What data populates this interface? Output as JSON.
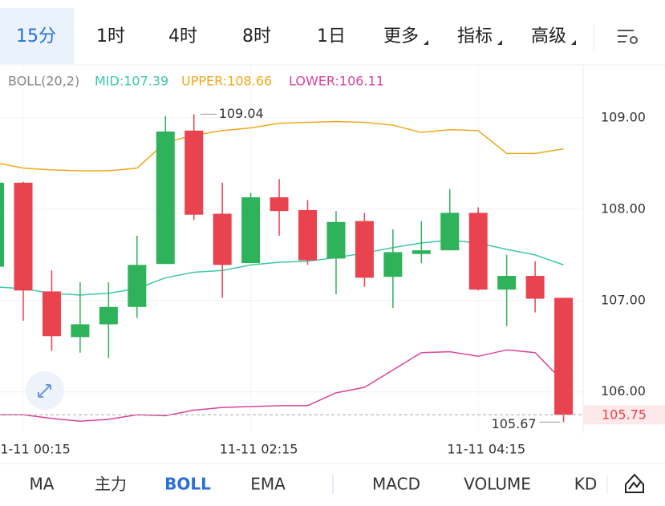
{
  "tabs": [
    "15分",
    "1时",
    "4时",
    "8时",
    "1日",
    "更多",
    "指标",
    "高级"
  ],
  "legend": [
    "BOLL(20,2)",
    "MID:107.39",
    "UPPER:108.66",
    "LOWER:106.11"
  ],
  "bottom_tabs": [
    "MA",
    "主力",
    "BOLL",
    "EMA",
    "MACD",
    "VOLUME",
    "KD"
  ],
  "chart_data": {
    "type": "candlestick",
    "categories": [
      null,
      "11-11 00:15",
      null,
      null,
      null,
      null,
      null,
      null,
      null,
      "11-11 02:15",
      null,
      null,
      null,
      null,
      null,
      null,
      null,
      "11-11 04:15",
      null,
      null,
      null
    ],
    "open": [
      107.37,
      108.29,
      107.1,
      106.6,
      106.74,
      106.93,
      107.4,
      108.86,
      107.95,
      107.41,
      108.13,
      107.99,
      107.46,
      107.87,
      107.26,
      107.51,
      107.55,
      107.96,
      107.12,
      107.27,
      107.03
    ],
    "high": [
      108.3,
      108.3,
      107.33,
      107.2,
      107.2,
      107.71,
      109.02,
      109.04,
      108.29,
      108.18,
      108.33,
      108.1,
      107.98,
      107.96,
      107.78,
      107.87,
      108.22,
      108.02,
      107.5,
      107.43,
      107.03
    ],
    "low": [
      107.3,
      106.78,
      106.45,
      106.43,
      106.37,
      106.81,
      107.4,
      107.88,
      107.03,
      107.41,
      107.71,
      107.39,
      107.07,
      107.15,
      106.92,
      107.41,
      107.55,
      107.11,
      106.72,
      106.87,
      105.67
    ],
    "close": [
      108.29,
      107.11,
      106.61,
      106.74,
      106.93,
      107.39,
      108.85,
      107.94,
      107.39,
      108.13,
      107.98,
      107.44,
      107.86,
      107.25,
      107.53,
      107.55,
      107.96,
      107.12,
      107.27,
      107.02,
      105.75
    ],
    "up_color": "#2eb25a",
    "down_color": "#e8434f",
    "series": [
      {
        "color": "#f0a81c",
        "values": [
          108.51,
          108.45,
          108.43,
          108.42,
          108.42,
          108.45,
          108.73,
          108.81,
          108.86,
          108.89,
          108.94,
          108.95,
          108.96,
          108.95,
          108.92,
          108.84,
          108.87,
          108.86,
          108.61,
          108.61,
          108.66
        ]
      },
      {
        "color": "#3cc8a8",
        "values": [
          107.15,
          107.13,
          107.08,
          107.06,
          107.08,
          107.13,
          107.25,
          107.31,
          107.33,
          107.39,
          107.42,
          107.43,
          107.47,
          107.52,
          107.58,
          107.63,
          107.66,
          107.63,
          107.56,
          107.5,
          107.39
        ]
      },
      {
        "color": "#d9459d",
        "values": [
          105.75,
          105.75,
          105.71,
          105.68,
          105.7,
          105.75,
          105.74,
          105.8,
          105.83,
          105.84,
          105.85,
          105.85,
          105.99,
          106.05,
          106.24,
          106.43,
          106.44,
          106.39,
          106.46,
          106.43,
          106.11
        ]
      }
    ],
    "ylim": [
      105.55,
      109.57
    ],
    "yticks": [
      {
        "value": 106,
        "label": "106.00"
      },
      {
        "value": 107,
        "label": "107.00"
      },
      {
        "value": 108,
        "label": "108.00"
      },
      {
        "value": 109,
        "label": "109.00"
      }
    ],
    "grid": true
  }
}
